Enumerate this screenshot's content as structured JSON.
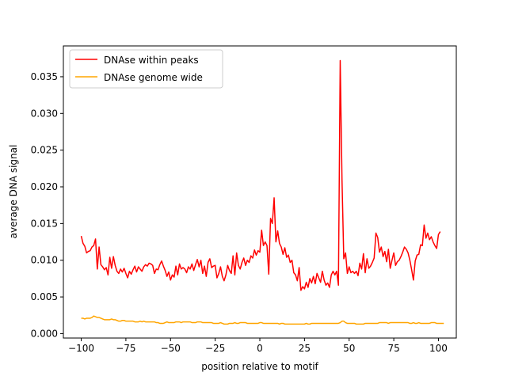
{
  "chart_data": {
    "type": "line",
    "title": "",
    "xlabel": "position relative to motif",
    "ylabel": "average DNA signal",
    "xlim": [
      -110,
      110
    ],
    "ylim": [
      -0.0006,
      0.0392
    ],
    "xticks": [
      -100,
      -75,
      -50,
      -25,
      0,
      25,
      50,
      75,
      100
    ],
    "xtick_labels": [
      "−100",
      "−75",
      "−50",
      "−25",
      "0",
      "25",
      "50",
      "75",
      "100"
    ],
    "yticks": [
      0.0,
      0.005,
      0.01,
      0.015,
      0.02,
      0.025,
      0.03,
      0.035
    ],
    "ytick_labels": [
      "0.000",
      "0.005",
      "0.010",
      "0.015",
      "0.020",
      "0.025",
      "0.030",
      "0.035"
    ],
    "legend_position": "top-left",
    "grid": false,
    "x_start": -100,
    "x_step": 1,
    "series": [
      {
        "name": "DNAse within peaks",
        "color": "#ff0000",
        "values": [
          0.0133,
          0.0123,
          0.0119,
          0.011,
          0.0112,
          0.0113,
          0.0118,
          0.012,
          0.0129,
          0.0088,
          0.0118,
          0.0094,
          0.0091,
          0.0087,
          0.009,
          0.008,
          0.0104,
          0.0089,
          0.0105,
          0.0093,
          0.0085,
          0.0082,
          0.0088,
          0.0084,
          0.0089,
          0.0082,
          0.0076,
          0.0085,
          0.0081,
          0.0087,
          0.0092,
          0.0084,
          0.0091,
          0.0088,
          0.0085,
          0.0091,
          0.0094,
          0.0092,
          0.0096,
          0.0095,
          0.0093,
          0.0082,
          0.0088,
          0.0087,
          0.0094,
          0.0099,
          0.0092,
          0.0086,
          0.0078,
          0.0084,
          0.0073,
          0.008,
          0.0077,
          0.0092,
          0.008,
          0.0095,
          0.0088,
          0.009,
          0.0088,
          0.0083,
          0.0091,
          0.0088,
          0.0095,
          0.0086,
          0.0094,
          0.0101,
          0.0091,
          0.01,
          0.0082,
          0.0092,
          0.0078,
          0.0097,
          0.0102,
          0.009,
          0.0092,
          0.0093,
          0.0076,
          0.0082,
          0.0091,
          0.0078,
          0.0072,
          0.008,
          0.0093,
          0.0086,
          0.0082,
          0.0106,
          0.008,
          0.011,
          0.0093,
          0.0088,
          0.0097,
          0.0103,
          0.0093,
          0.01,
          0.0097,
          0.0106,
          0.0103,
          0.0114,
          0.0107,
          0.0113,
          0.0111,
          0.0141,
          0.012,
          0.0125,
          0.012,
          0.0081,
          0.0157,
          0.015,
          0.0185,
          0.0125,
          0.014,
          0.0123,
          0.0118,
          0.0108,
          0.0117,
          0.0104,
          0.0107,
          0.0097,
          0.01,
          0.0083,
          0.008,
          0.0072,
          0.009,
          0.0059,
          0.0064,
          0.0061,
          0.007,
          0.0063,
          0.0075,
          0.0069,
          0.0078,
          0.0068,
          0.0082,
          0.0076,
          0.007,
          0.0085,
          0.0073,
          0.0066,
          0.0069,
          0.0063,
          0.008,
          0.0085,
          0.008,
          0.0085,
          0.0066,
          0.0372,
          0.021,
          0.0102,
          0.011,
          0.0082,
          0.0091,
          0.0083,
          0.0085,
          0.0082,
          0.0085,
          0.0079,
          0.0096,
          0.0088,
          0.0109,
          0.0083,
          0.0102,
          0.0089,
          0.0092,
          0.0097,
          0.0103,
          0.0137,
          0.0131,
          0.0111,
          0.0118,
          0.0105,
          0.0112,
          0.0098,
          0.0115,
          0.0089,
          0.01,
          0.011,
          0.0093,
          0.0098,
          0.01,
          0.0105,
          0.0111,
          0.0118,
          0.0115,
          0.011,
          0.01,
          0.0087,
          0.0073,
          0.0099,
          0.0107,
          0.0108,
          0.0121,
          0.012,
          0.0148,
          0.013,
          0.0137,
          0.0128,
          0.0132,
          0.0125,
          0.012,
          0.0116,
          0.0135,
          0.0139
        ]
      },
      {
        "name": "DNAse genome wide",
        "color": "#ffa500",
        "values": [
          0.0021,
          0.0021,
          0.002,
          0.0021,
          0.0021,
          0.0021,
          0.0022,
          0.0024,
          0.0023,
          0.0022,
          0.0022,
          0.0021,
          0.002,
          0.0019,
          0.0019,
          0.0019,
          0.0019,
          0.002,
          0.0019,
          0.0019,
          0.0018,
          0.0017,
          0.0017,
          0.0018,
          0.0018,
          0.0017,
          0.0017,
          0.0017,
          0.0017,
          0.0017,
          0.0016,
          0.0016,
          0.0016,
          0.0017,
          0.0016,
          0.0017,
          0.0016,
          0.0016,
          0.0016,
          0.0016,
          0.0016,
          0.0016,
          0.0015,
          0.0015,
          0.0014,
          0.0014,
          0.0014,
          0.0015,
          0.0016,
          0.0015,
          0.0015,
          0.0015,
          0.0015,
          0.0016,
          0.0016,
          0.0016,
          0.0015,
          0.0016,
          0.0016,
          0.0016,
          0.0016,
          0.0016,
          0.0015,
          0.0015,
          0.0015,
          0.0016,
          0.0016,
          0.0016,
          0.0015,
          0.0015,
          0.0015,
          0.0015,
          0.0015,
          0.0015,
          0.0014,
          0.0014,
          0.0014,
          0.0014,
          0.0015,
          0.0014,
          0.0013,
          0.0013,
          0.0013,
          0.0014,
          0.0014,
          0.0014,
          0.0015,
          0.0014,
          0.0014,
          0.0015,
          0.0015,
          0.0015,
          0.0015,
          0.0014,
          0.0014,
          0.0014,
          0.0014,
          0.0014,
          0.0014,
          0.0014,
          0.0015,
          0.0015,
          0.0014,
          0.0014,
          0.0014,
          0.0014,
          0.0014,
          0.0014,
          0.0014,
          0.0014,
          0.0014,
          0.0013,
          0.0014,
          0.0014,
          0.0013,
          0.0013,
          0.0013,
          0.0013,
          0.0013,
          0.0013,
          0.0013,
          0.0013,
          0.0013,
          0.0013,
          0.0013,
          0.0013,
          0.0014,
          0.0013,
          0.0013,
          0.0014,
          0.0014,
          0.0014,
          0.0014,
          0.0014,
          0.0014,
          0.0014,
          0.0014,
          0.0014,
          0.0014,
          0.0014,
          0.0014,
          0.0014,
          0.0014,
          0.0014,
          0.0014,
          0.0015,
          0.0017,
          0.0017,
          0.0015,
          0.0014,
          0.0014,
          0.0014,
          0.0014,
          0.0014,
          0.0013,
          0.0013,
          0.0013,
          0.0013,
          0.0013,
          0.0014,
          0.0014,
          0.0014,
          0.0014,
          0.0014,
          0.0014,
          0.0014,
          0.0014,
          0.0015,
          0.0015,
          0.0015,
          0.0015,
          0.0015,
          0.0014,
          0.0015,
          0.0015,
          0.0015,
          0.0015,
          0.0015,
          0.0015,
          0.0015,
          0.0015,
          0.0015,
          0.0015,
          0.0015,
          0.0014,
          0.0014,
          0.0015,
          0.0014,
          0.0014,
          0.0015,
          0.0014,
          0.0014,
          0.0014,
          0.0014,
          0.0014,
          0.0014,
          0.0015,
          0.0015,
          0.0015,
          0.0014,
          0.0014,
          0.0014,
          0.0014,
          0.0014
        ]
      }
    ]
  }
}
